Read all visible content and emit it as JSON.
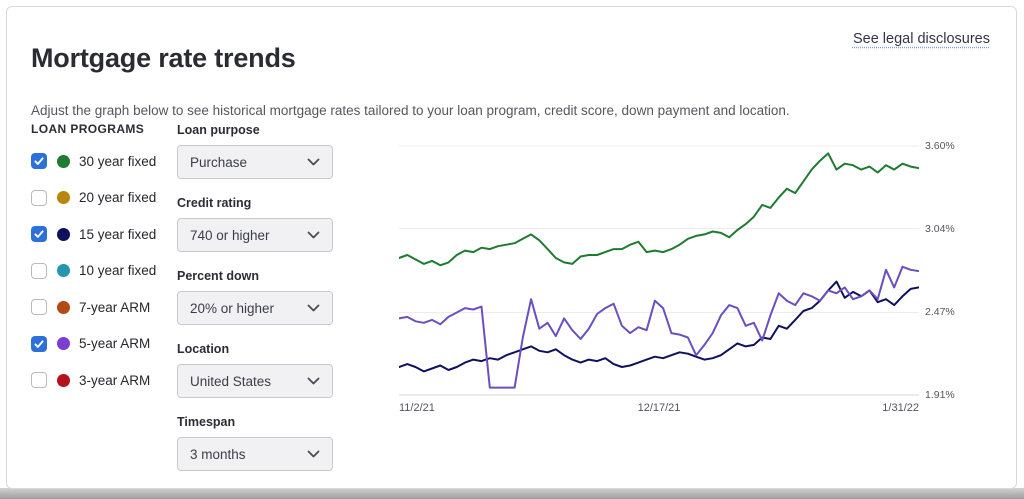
{
  "header": {
    "title": "Mortgage rate trends",
    "legal_link": "See legal disclosures"
  },
  "subtitle": "Adjust the graph below to see historical mortgage rates tailored to your loan program, credit score, down payment and location.",
  "loan_programs": {
    "heading": "LOAN PROGRAMS",
    "items": [
      {
        "label": "30 year fixed",
        "checked": true,
        "color": "#1e7b2f"
      },
      {
        "label": "20 year fixed",
        "checked": false,
        "color": "#b8860f"
      },
      {
        "label": "15 year fixed",
        "checked": true,
        "color": "#10115e"
      },
      {
        "label": "10 year fixed",
        "checked": false,
        "color": "#2596ad"
      },
      {
        "label": "7-year ARM",
        "checked": false,
        "color": "#b04a17"
      },
      {
        "label": "5-year ARM",
        "checked": true,
        "color": "#7a3fd1"
      },
      {
        "label": "3-year ARM",
        "checked": false,
        "color": "#b5121b"
      }
    ]
  },
  "filters": [
    {
      "label": "Loan purpose",
      "value": "Purchase"
    },
    {
      "label": "Credit rating",
      "value": "740 or higher"
    },
    {
      "label": "Percent down",
      "value": "20% or higher"
    },
    {
      "label": "Location",
      "value": "United States"
    },
    {
      "label": "Timespan",
      "value": "3 months"
    }
  ],
  "colors": {
    "checkbox_checked": "#2e70d9",
    "grid_line": "#ececf0",
    "axis_line": "#d7d7dc",
    "link_underline": "#7fa3d8"
  },
  "chart_data": {
    "type": "line",
    "title": "",
    "xlabel": "",
    "ylabel": "",
    "grid": true,
    "legend_position": "none",
    "ylim": [
      1.91,
      3.6
    ],
    "y_ticks": [
      "3.60%",
      "3.04%",
      "2.47%",
      "1.91%"
    ],
    "y_tick_values": [
      3.6,
      3.04,
      2.47,
      1.91
    ],
    "x_labels": [
      "11/2/21",
      "12/17/21",
      "1/31/22"
    ],
    "series": [
      {
        "name": "30 year fixed",
        "color": "#1e7b2f",
        "values": [
          2.84,
          2.86,
          2.83,
          2.8,
          2.82,
          2.79,
          2.81,
          2.86,
          2.89,
          2.88,
          2.91,
          2.9,
          2.92,
          2.93,
          2.94,
          2.97,
          3.0,
          2.96,
          2.9,
          2.84,
          2.81,
          2.8,
          2.85,
          2.86,
          2.86,
          2.88,
          2.9,
          2.9,
          2.93,
          2.95,
          2.88,
          2.89,
          2.88,
          2.9,
          2.93,
          2.97,
          2.99,
          3.0,
          3.02,
          3.01,
          2.98,
          3.03,
          3.07,
          3.12,
          3.2,
          3.18,
          3.25,
          3.31,
          3.28,
          3.36,
          3.44,
          3.5,
          3.55,
          3.44,
          3.48,
          3.47,
          3.44,
          3.46,
          3.42,
          3.47,
          3.44,
          3.48,
          3.46,
          3.45
        ]
      },
      {
        "name": "15 year fixed",
        "color": "#10115e",
        "values": [
          2.1,
          2.12,
          2.1,
          2.07,
          2.09,
          2.11,
          2.08,
          2.1,
          2.13,
          2.15,
          2.14,
          2.16,
          2.15,
          2.18,
          2.2,
          2.22,
          2.24,
          2.21,
          2.2,
          2.22,
          2.18,
          2.15,
          2.13,
          2.15,
          2.14,
          2.16,
          2.12,
          2.1,
          2.11,
          2.13,
          2.15,
          2.17,
          2.16,
          2.18,
          2.2,
          2.19,
          2.17,
          2.15,
          2.16,
          2.18,
          2.22,
          2.26,
          2.24,
          2.25,
          2.3,
          2.29,
          2.38,
          2.36,
          2.42,
          2.48,
          2.5,
          2.55,
          2.62,
          2.68,
          2.57,
          2.61,
          2.58,
          2.62,
          2.54,
          2.56,
          2.52,
          2.58,
          2.63,
          2.64
        ]
      },
      {
        "name": "5-year ARM",
        "color": "#6a4fc1",
        "values": [
          2.43,
          2.44,
          2.41,
          2.4,
          2.42,
          2.39,
          2.44,
          2.47,
          2.5,
          2.49,
          2.51,
          1.96,
          1.96,
          1.96,
          1.96,
          2.3,
          2.56,
          2.36,
          2.4,
          2.31,
          2.43,
          2.35,
          2.29,
          2.36,
          2.46,
          2.5,
          2.53,
          2.38,
          2.33,
          2.37,
          2.35,
          2.55,
          2.5,
          2.33,
          2.32,
          2.3,
          2.18,
          2.25,
          2.33,
          2.45,
          2.52,
          2.5,
          2.38,
          2.4,
          2.28,
          2.45,
          2.6,
          2.55,
          2.52,
          2.6,
          2.58,
          2.55,
          2.62,
          2.6,
          2.64,
          2.56,
          2.58,
          2.62,
          2.56,
          2.76,
          2.64,
          2.78,
          2.76,
          2.75
        ]
      }
    ]
  }
}
